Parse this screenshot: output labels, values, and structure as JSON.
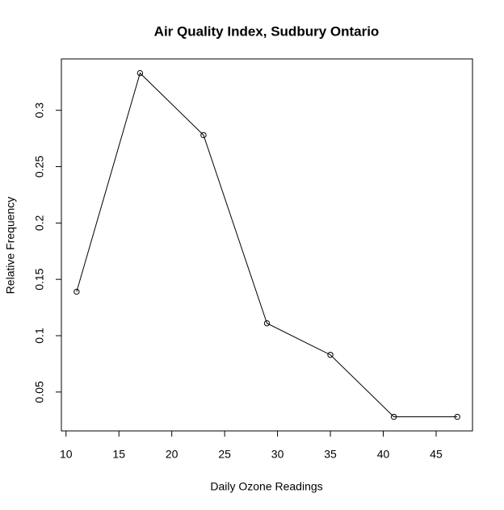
{
  "chart_data": {
    "type": "line",
    "title": "Air Quality Index, Sudbury Ontario",
    "x_label": "Daily Ozone Readings",
    "y_label": "Relative Frequency",
    "x": [
      11,
      17,
      23,
      29,
      35,
      41,
      47
    ],
    "values": [
      0.139,
      0.333,
      0.278,
      0.111,
      0.083,
      0.028,
      0.028
    ],
    "color": "#000000",
    "xlim": [
      9.56,
      48.44
    ],
    "xticks": [
      10,
      15,
      20,
      25,
      30,
      35,
      40,
      45
    ],
    "ylim": [
      0.0155,
      0.3456
    ],
    "yticks": [
      0.05,
      0.1,
      0.15,
      0.2,
      0.25,
      0.3
    ],
    "ytick_labels_fmt": null
  }
}
